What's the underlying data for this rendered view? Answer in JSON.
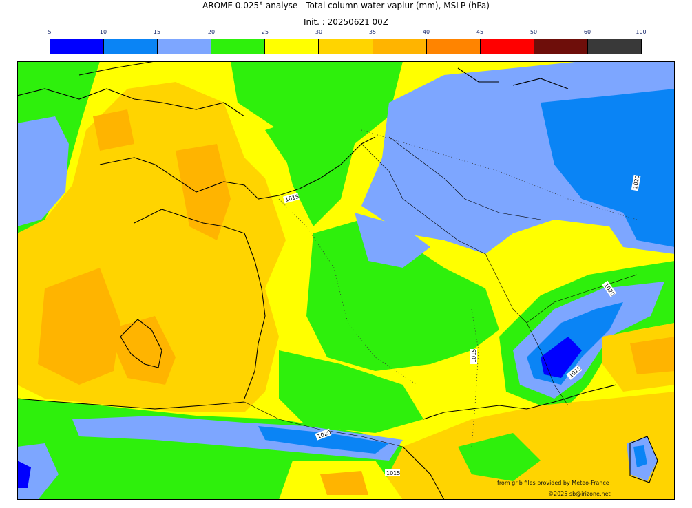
{
  "header": {
    "title": "AROME 0.025° analyse - Total column water vapiur (mm), MSLP (hPa)",
    "init": "Init. : 20250621 00Z"
  },
  "colorbar": {
    "ticks": [
      "5",
      "10",
      "15",
      "20",
      "25",
      "30",
      "35",
      "40",
      "45",
      "50",
      "60",
      "100"
    ],
    "colors": [
      "#0000ff",
      "#0a84f5",
      "#7da6ff",
      "#2ef00c",
      "#ffff00",
      "#ffd400",
      "#ffb400",
      "#ff8400",
      "#ff0000",
      "#6e0e0a",
      "#393939"
    ]
  },
  "isobars": [
    "1015",
    "1015",
    "1015",
    "1015",
    "1020",
    "1020",
    "1020"
  ],
  "credits": {
    "source": "from grib files provided by Meteo-France",
    "copyright": "©2025 sb@irizone.net"
  }
}
